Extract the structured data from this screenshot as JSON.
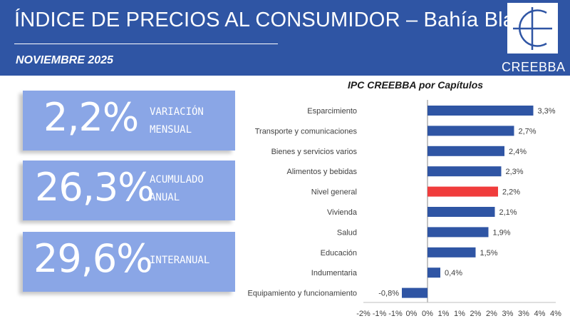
{
  "header": {
    "title": "ÍNDICE DE PRECIOS AL CONSUMIDOR – Bahía Blanca",
    "subtitle": "NOVIEMBRE 2025",
    "logo_text": "CREEBBA"
  },
  "colors": {
    "header_bg": "#2f55a4",
    "card_bg": "#8aa6e6",
    "bar": "#2f55a4",
    "highlight_bar": "#f03c3c"
  },
  "cards": [
    {
      "value": "2,2%",
      "label": "VARIACIÓN\nMENSUAL"
    },
    {
      "value": "26,3%",
      "label": "ACUMULADO\nANUAL"
    },
    {
      "value": "29,6%",
      "label": "INTERANUAL"
    }
  ],
  "chart_data": {
    "type": "bar",
    "orientation": "horizontal",
    "title": "IPC CREEBBA por Capítulos",
    "categories": [
      "Esparcimiento",
      "Transporte y comunicaciones",
      "Bienes y servicios varios",
      "Alimentos y bebidas",
      "Nivel general",
      "Vivienda",
      "Salud",
      "Educación",
      "Indumentaria",
      "Equipamiento y funcionamiento"
    ],
    "values": [
      3.3,
      2.7,
      2.4,
      2.3,
      2.2,
      2.1,
      1.9,
      1.5,
      0.4,
      -0.8
    ],
    "value_labels": [
      "3,3%",
      "2,7%",
      "2,4%",
      "2,3%",
      "2,2%",
      "2,1%",
      "1,9%",
      "1,5%",
      "0,4%",
      "-0,8%"
    ],
    "highlight": "Nivel general",
    "xlim": [
      -2,
      4
    ],
    "x_ticks": [
      -2,
      -1.5,
      -1,
      -0.5,
      0,
      0.5,
      1,
      1.5,
      2,
      2.5,
      3,
      3.5,
      4
    ],
    "x_tick_labels": [
      "-2%",
      "-1%",
      "-1%",
      "0%",
      "0%",
      "1%",
      "1%",
      "2%",
      "2%",
      "3%",
      "3%",
      "4%",
      "4%"
    ],
    "xlabel": "",
    "ylabel": "",
    "grid": false
  }
}
